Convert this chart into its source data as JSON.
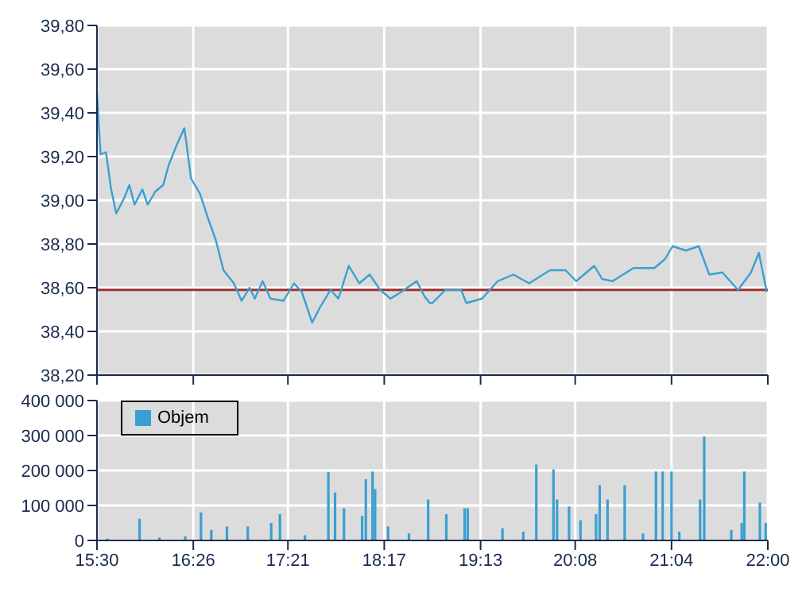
{
  "chart_data": [
    {
      "type": "line",
      "tick_labels": "y",
      "grid": true,
      "marker": "none",
      "line_style": "solid",
      "xlim": [
        15.5,
        22
      ],
      "xticks": [
        {
          "value": 15.5,
          "label": null
        },
        {
          "value": 16.4333,
          "label": null
        },
        {
          "value": 17.35,
          "label": null
        },
        {
          "value": 18.2833,
          "label": null
        },
        {
          "value": 19.2167,
          "label": null
        },
        {
          "value": 20.1333,
          "label": null
        },
        {
          "value": 21.0667,
          "label": null
        },
        {
          "value": 22,
          "label": null
        }
      ],
      "ylim": [
        38.2,
        39.8
      ],
      "yticks": [
        {
          "value": 38.2,
          "label": "38,20"
        },
        {
          "value": 38.4,
          "label": "38,40"
        },
        {
          "value": 38.6,
          "label": "38,60"
        },
        {
          "value": 38.8,
          "label": "38,80"
        },
        {
          "value": 39.0,
          "label": "39,00"
        },
        {
          "value": 39.2,
          "label": "39,20"
        },
        {
          "value": 39.4,
          "label": "39,40"
        },
        {
          "value": 39.6,
          "label": "39,60"
        },
        {
          "value": 39.8,
          "label": "39,80"
        }
      ],
      "ref_lines": [
        {
          "axis": "y",
          "value": 38.59,
          "color": "#a03030"
        }
      ],
      "series": [
        {
          "color": "#3aa0d0",
          "x": [
            15.5,
            15.535,
            15.587,
            15.637,
            15.687,
            15.763,
            15.814,
            15.864,
            15.94,
            15.991,
            16.066,
            16.142,
            16.194,
            16.27,
            16.346,
            16.37,
            16.411,
            16.498,
            16.574,
            16.65,
            16.726,
            16.826,
            16.902,
            16.978,
            17.029,
            17.105,
            17.181,
            17.307,
            17.409,
            17.485,
            17.585,
            17.661,
            17.763,
            17.839,
            17.94,
            18.041,
            18.142,
            18.244,
            18.344,
            18.446,
            18.598,
            18.674,
            18.724,
            18.75,
            18.876,
            19.028,
            19.079,
            19.231,
            19.383,
            19.535,
            19.687,
            19.889,
            20.041,
            20.143,
            20.318,
            20.394,
            20.496,
            20.698,
            20.901,
            21.002,
            21.078,
            21.205,
            21.331,
            21.433,
            21.559,
            21.711,
            21.837,
            21.913,
            21.989
          ],
          "values": [
            39.49,
            39.21,
            39.22,
            39.05,
            38.94,
            39.01,
            39.07,
            38.98,
            39.05,
            38.98,
            39.04,
            39.07,
            39.16,
            39.25,
            39.33,
            39.25,
            39.1,
            39.03,
            38.92,
            38.82,
            38.68,
            38.62,
            38.54,
            38.6,
            38.55,
            38.63,
            38.55,
            38.54,
            38.62,
            38.58,
            38.44,
            38.51,
            38.59,
            38.55,
            38.7,
            38.62,
            38.66,
            38.59,
            38.55,
            38.58,
            38.63,
            38.56,
            38.53,
            38.53,
            38.59,
            38.59,
            38.53,
            38.55,
            38.63,
            38.66,
            38.62,
            38.68,
            38.68,
            38.63,
            38.7,
            38.64,
            38.63,
            38.69,
            38.69,
            38.73,
            38.79,
            38.77,
            38.79,
            38.66,
            38.67,
            38.59,
            38.67,
            38.76,
            38.58
          ]
        }
      ]
    },
    {
      "type": "bar",
      "grid": true,
      "legend": "top left",
      "xlim": [
        15.5,
        22
      ],
      "xticks": [
        {
          "value": 15.5,
          "label": "15:30"
        },
        {
          "value": 16.4333,
          "label": "16:26"
        },
        {
          "value": 17.35,
          "label": "17:21"
        },
        {
          "value": 18.2833,
          "label": "18:17"
        },
        {
          "value": 19.2167,
          "label": "19:13"
        },
        {
          "value": 20.1333,
          "label": "20:08"
        },
        {
          "value": 21.0667,
          "label": "21:04"
        },
        {
          "value": 22,
          "label": "22:00"
        }
      ],
      "ylim": [
        0,
        400000
      ],
      "yticks": [
        0,
        {
          "value": 100000,
          "label": "100 000"
        },
        {
          "value": 200000,
          "label": "200 000"
        },
        {
          "value": 300000,
          "label": "300 000"
        },
        {
          "value": 400000,
          "label": "400 000"
        }
      ],
      "series": [
        {
          "name": "Objem",
          "color": "#3aa0d0",
          "x": [
            15.601,
            15.913,
            16.105,
            16.356,
            16.508,
            16.608,
            16.759,
            16.961,
            17.188,
            17.273,
            17.515,
            17.742,
            17.807,
            17.893,
            18.069,
            18.105,
            18.17,
            18.195,
            18.321,
            18.523,
            18.709,
            18.885,
            19.062,
            19.092,
            19.429,
            19.631,
            19.757,
            19.923,
            19.958,
            20.074,
            20.185,
            20.336,
            20.371,
            20.447,
            20.613,
            20.79,
            20.916,
            20.981,
            21.067,
            21.142,
            21.344,
            21.384,
            21.646,
            21.747,
            21.772,
            21.923,
            21.979
          ],
          "values": [
            5000,
            62000,
            8000,
            12000,
            80000,
            30000,
            40000,
            40000,
            50000,
            75000,
            15000,
            195000,
            137000,
            92000,
            70000,
            175000,
            197000,
            147000,
            40000,
            20000,
            117000,
            75000,
            92000,
            92000,
            35000,
            25000,
            217000,
            203000,
            117000,
            97000,
            58000,
            75000,
            158000,
            117000,
            158000,
            20000,
            197000,
            197000,
            197000,
            25000,
            117000,
            297000,
            30000,
            50000,
            197000,
            108000,
            50000
          ]
        }
      ]
    }
  ]
}
